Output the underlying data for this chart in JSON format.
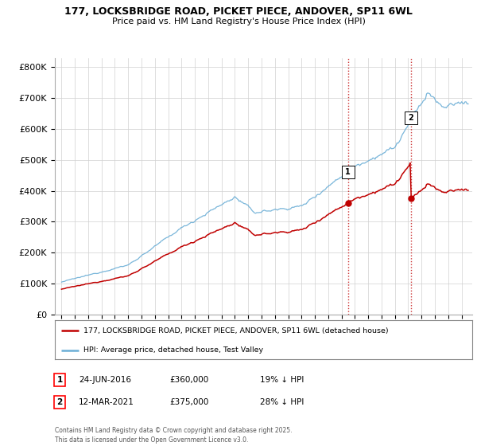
{
  "title_line1": "177, LOCKSBRIDGE ROAD, PICKET PIECE, ANDOVER, SP11 6WL",
  "title_line2": "Price paid vs. HM Land Registry's House Price Index (HPI)",
  "hpi_color": "#6baed6",
  "price_color": "#c00000",
  "vline_color": "#c00000",
  "ylabel_ticks": [
    "£0",
    "£100K",
    "£200K",
    "£300K",
    "£400K",
    "£500K",
    "£600K",
    "£700K",
    "£800K"
  ],
  "ytick_values": [
    0,
    100000,
    200000,
    300000,
    400000,
    500000,
    600000,
    700000,
    800000
  ],
  "ylim": [
    0,
    830000
  ],
  "xlim_start": 1994.5,
  "xlim_end": 2025.8,
  "sale1_date": 2016.48,
  "sale1_price": 360000,
  "sale2_date": 2021.19,
  "sale2_price": 375000,
  "legend_line1": "177, LOCKSBRIDGE ROAD, PICKET PIECE, ANDOVER, SP11 6WL (detached house)",
  "legend_line2": "HPI: Average price, detached house, Test Valley",
  "footer": "Contains HM Land Registry data © Crown copyright and database right 2025.\nThis data is licensed under the Open Government Licence v3.0.",
  "annotation1_date": "24-JUN-2016",
  "annotation1_price": "£360,000",
  "annotation1_note": "19% ↓ HPI",
  "annotation2_date": "12-MAR-2021",
  "annotation2_price": "£375,000",
  "annotation2_note": "28% ↓ HPI",
  "background_color": "#ffffff",
  "grid_color": "#d0d0d0"
}
